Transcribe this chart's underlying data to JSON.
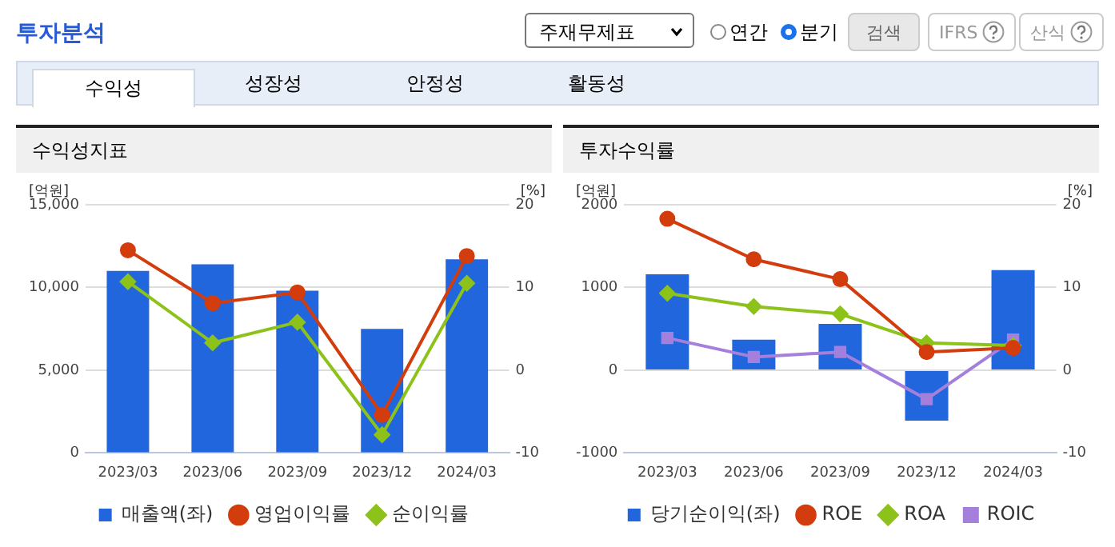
{
  "chart_data": [
    {
      "type": "other",
      "annotations": [
        "투자분석",
        "주재무제표",
        "연간",
        "분기",
        "검색",
        "IFRS",
        "산식",
        "수익성",
        "성장성",
        "안정성",
        "활동성"
      ]
    },
    {
      "type": "bar",
      "title": "수익성지표",
      "ylabel": "[억원]",
      "y2label": "[%]",
      "categories": [
        "2023/03",
        "2023/06",
        "2023/09",
        "2023/12",
        "2024/03"
      ],
      "series": [
        {
          "name": "매출액(좌)",
          "type": "bar",
          "color": "#2166dc",
          "values": [
            11000,
            11400,
            9800,
            7500,
            11700
          ]
        },
        {
          "name": "영업이익률",
          "type": "line",
          "axis": "y2",
          "marker": "circle",
          "color": "#d33c0c",
          "values": [
            14.5,
            8.1,
            9.4,
            -5.4,
            13.8
          ]
        },
        {
          "name": "순이익률",
          "type": "line",
          "axis": "y2",
          "marker": "diamond",
          "color": "#8cc21a",
          "values": [
            10.7,
            3.3,
            5.8,
            -7.8,
            10.5
          ]
        }
      ],
      "ylim": [
        0,
        15000
      ],
      "yticks": [
        0,
        {
          "value": 5000,
          "label": "5,000"
        },
        {
          "value": 10000,
          "label": "10,000"
        },
        {
          "value": 15000,
          "label": "15,000"
        }
      ],
      "y2lim": [
        -10,
        20
      ],
      "y2ticks": [
        -10,
        0,
        10,
        20
      ],
      "grid": "y",
      "legend": "bottom"
    },
    {
      "type": "bar",
      "title": "투자수익률",
      "ylabel": "[억원]",
      "y2label": "[%]",
      "categories": [
        "2023/03",
        "2023/06",
        "2023/09",
        "2023/12",
        "2024/03"
      ],
      "series": [
        {
          "name": "당기순이익(좌)",
          "type": "bar",
          "color": "#2166dc",
          "values": [
            1160,
            370,
            560,
            -610,
            1210
          ]
        },
        {
          "name": "ROE",
          "type": "line",
          "axis": "y2",
          "marker": "circle",
          "color": "#d33c0c",
          "values": [
            18.3,
            13.4,
            11.0,
            2.2,
            2.7
          ]
        },
        {
          "name": "ROA",
          "type": "line",
          "axis": "y2",
          "marker": "diamond",
          "color": "#8cc21a",
          "values": [
            9.3,
            7.7,
            6.8,
            3.3,
            3.0
          ]
        },
        {
          "name": "ROIC",
          "type": "line",
          "axis": "y2",
          "marker": "square",
          "color": "#a57fdc",
          "values": [
            3.9,
            1.6,
            2.2,
            -3.5,
            3.7
          ]
        }
      ],
      "ylim": [
        -1000,
        2000
      ],
      "yticks": [
        -1000,
        0,
        1000,
        2000
      ],
      "y2lim": [
        -10,
        20
      ],
      "y2ticks": [
        -10,
        0,
        10,
        20
      ],
      "grid": "y",
      "legend": "bottom"
    }
  ]
}
